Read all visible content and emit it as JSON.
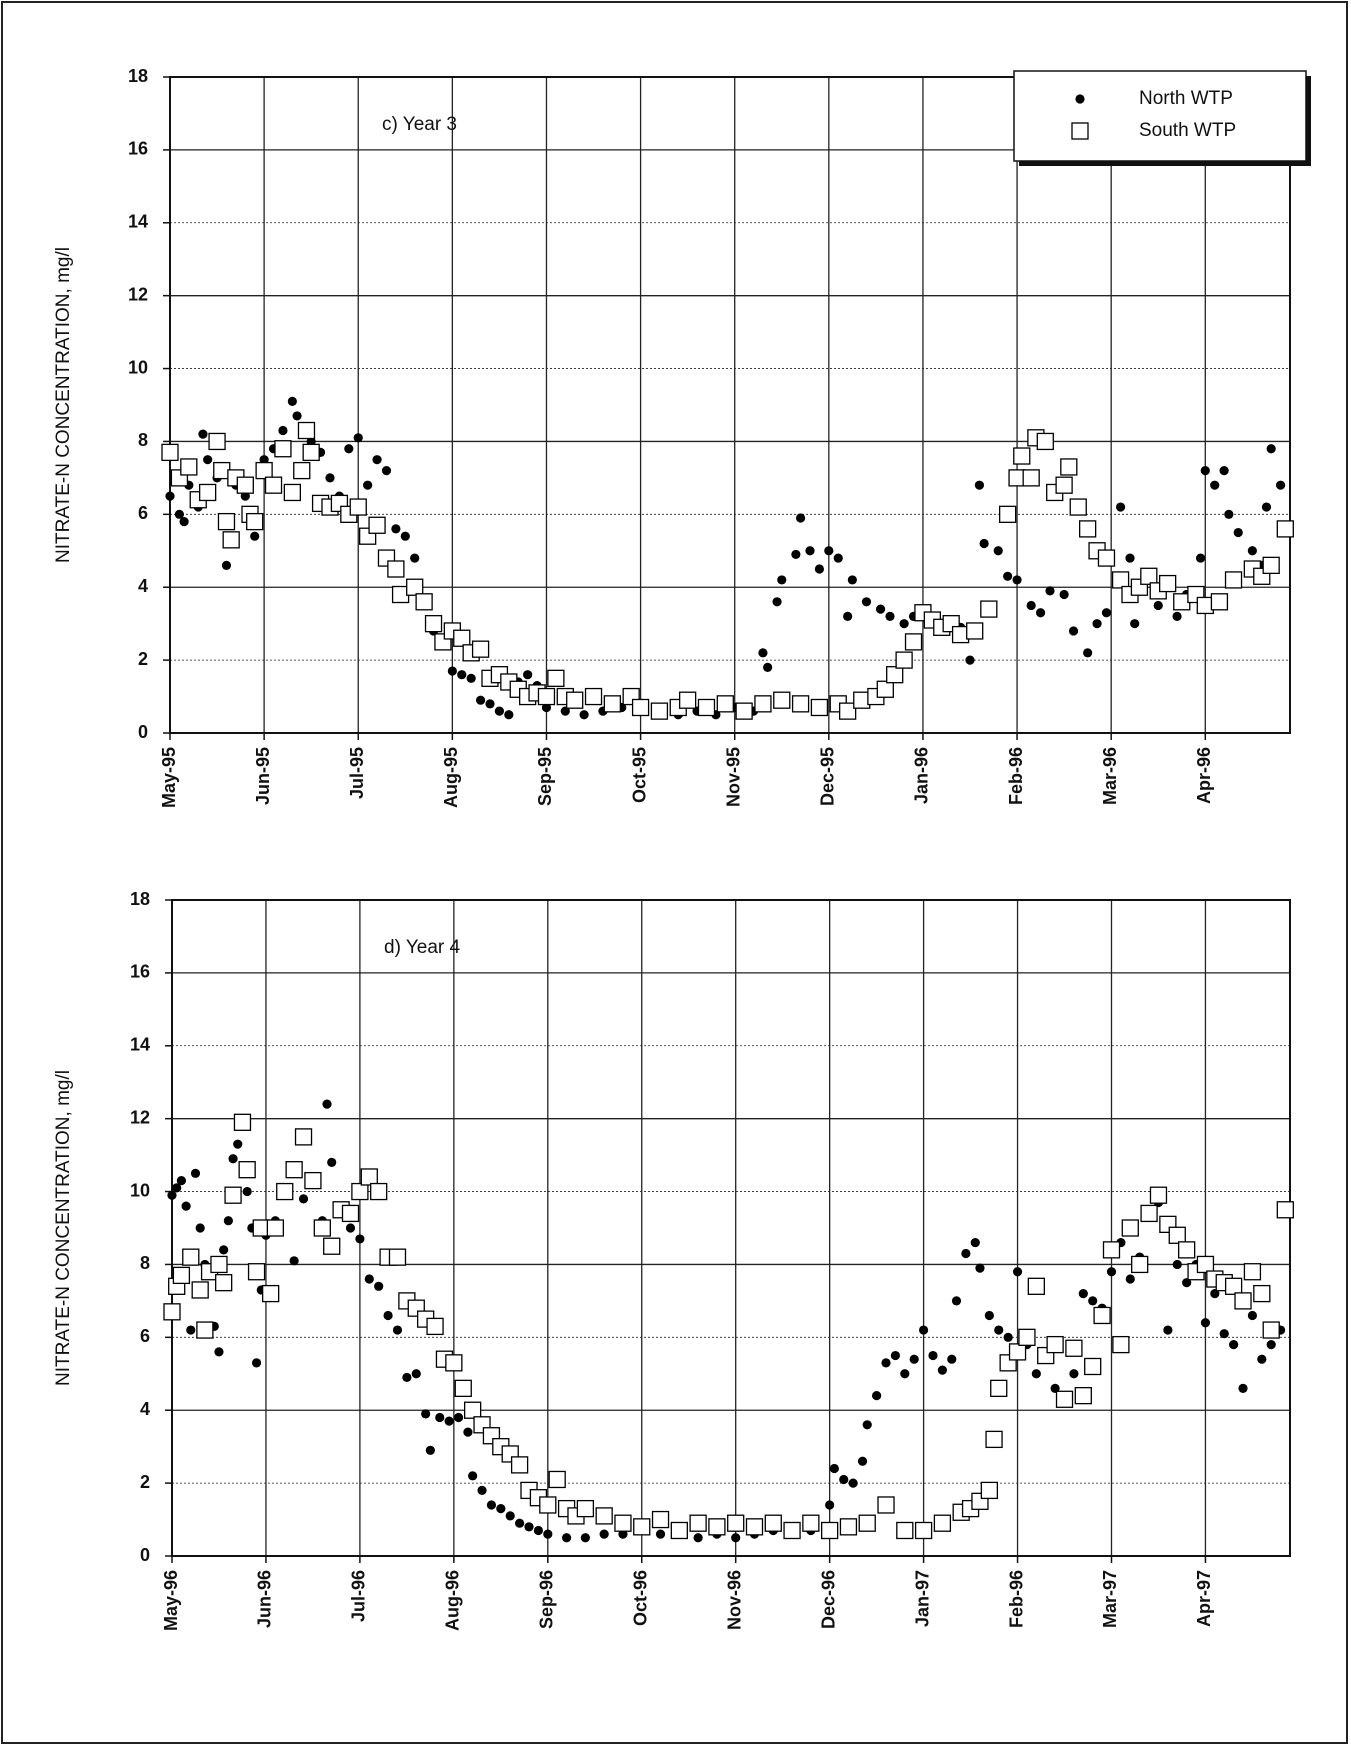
{
  "chart_data": [
    {
      "type": "scatter",
      "annotation": "c)  Year 3",
      "ylabel": "NITRATE-N CONCENTRATION, mg/l",
      "xlim": [
        0,
        11.9
      ],
      "ylim": [
        0,
        18
      ],
      "yticks": [
        0,
        2,
        4,
        6,
        8,
        10,
        12,
        14,
        16,
        18
      ],
      "xticks": [
        {
          "value": 0,
          "label": "May-95"
        },
        {
          "value": 1,
          "label": "Jun-95"
        },
        {
          "value": 2,
          "label": "Jul-95"
        },
        {
          "value": 3,
          "label": "Aug-95"
        },
        {
          "value": 4,
          "label": "Sep-95"
        },
        {
          "value": 5,
          "label": "Oct-95"
        },
        {
          "value": 6,
          "label": "Nov-95"
        },
        {
          "value": 7,
          "label": "Dec-95"
        },
        {
          "value": 8,
          "label": "Jan-96"
        },
        {
          "value": 9,
          "label": "Feb-96"
        },
        {
          "value": 10,
          "label": "Mar-96"
        },
        {
          "value": 11,
          "label": "Apr-96"
        }
      ],
      "grid": true,
      "legend": "upper right",
      "series": [
        {
          "name": "North WTP",
          "color": "#000000",
          "marker": "circle",
          "x": [
            0.0,
            0.05,
            0.1,
            0.15,
            0.2,
            0.3,
            0.35,
            0.4,
            0.5,
            0.6,
            0.7,
            0.8,
            0.9,
            1.0,
            1.1,
            1.2,
            1.3,
            1.35,
            1.4,
            1.5,
            1.6,
            1.7,
            1.8,
            1.9,
            2.0,
            2.1,
            2.2,
            2.3,
            2.4,
            2.5,
            2.6,
            2.7,
            2.8,
            2.9,
            3.0,
            3.1,
            3.2,
            3.3,
            3.4,
            3.5,
            3.6,
            3.7,
            3.8,
            3.9,
            4.0,
            4.2,
            4.4,
            4.6,
            4.8,
            5.0,
            5.2,
            5.4,
            5.6,
            5.8,
            6.0,
            6.2,
            6.3,
            6.35,
            6.45,
            6.5,
            6.65,
            6.7,
            6.8,
            6.9,
            7.0,
            7.1,
            7.2,
            7.25,
            7.4,
            7.55,
            7.65,
            7.8,
            7.9,
            8.1,
            8.25,
            8.4,
            8.5,
            8.6,
            8.65,
            8.8,
            8.9,
            9.0,
            9.15,
            9.25,
            9.35,
            9.5,
            9.6,
            9.75,
            9.85,
            9.95,
            10.1,
            10.2,
            10.25,
            10.4,
            10.5,
            10.7,
            10.8,
            10.9,
            10.95,
            11.0,
            11.1,
            11.2,
            11.25,
            11.35,
            11.5,
            11.6,
            11.65,
            11.7,
            11.8
          ],
          "values": [
            6.5,
            7.0,
            6.0,
            5.8,
            6.8,
            6.2,
            8.2,
            7.5,
            7.0,
            4.6,
            6.8,
            6.5,
            5.4,
            7.5,
            7.8,
            8.3,
            9.1,
            8.7,
            7.2,
            8.0,
            7.7,
            7.0,
            6.5,
            7.8,
            8.1,
            6.8,
            7.5,
            7.2,
            5.6,
            5.4,
            4.8,
            3.5,
            2.8,
            2.4,
            1.7,
            1.6,
            1.5,
            0.9,
            0.8,
            0.6,
            0.5,
            1.4,
            1.6,
            1.3,
            0.7,
            0.6,
            0.5,
            0.6,
            0.7,
            0.6,
            0.5,
            0.5,
            0.6,
            0.5,
            0.7,
            0.6,
            2.2,
            1.8,
            3.6,
            4.2,
            4.9,
            5.9,
            5.0,
            4.5,
            5.0,
            4.8,
            3.2,
            4.2,
            3.6,
            3.4,
            3.2,
            3.0,
            3.2,
            3.0,
            3.0,
            2.9,
            2.0,
            6.8,
            5.2,
            5.0,
            4.3,
            4.2,
            3.5,
            3.3,
            3.9,
            3.8,
            2.8,
            2.2,
            3.0,
            3.3,
            6.2,
            4.8,
            3.0,
            4.2,
            3.5,
            3.2,
            3.8,
            3.7,
            4.8,
            7.2,
            6.8,
            7.2,
            6.0,
            5.5,
            5.0,
            4.6,
            6.2,
            7.8,
            6.8
          ]
        },
        {
          "name": "South WTP",
          "color": "#000000",
          "marker": "square",
          "x": [
            0.0,
            0.1,
            0.2,
            0.3,
            0.4,
            0.5,
            0.55,
            0.6,
            0.65,
            0.7,
            0.8,
            0.85,
            0.9,
            1.0,
            1.1,
            1.2,
            1.3,
            1.4,
            1.45,
            1.5,
            1.6,
            1.7,
            1.8,
            1.9,
            2.0,
            2.1,
            2.2,
            2.3,
            2.4,
            2.45,
            2.6,
            2.7,
            2.8,
            2.9,
            3.0,
            3.1,
            3.2,
            3.3,
            3.4,
            3.5,
            3.6,
            3.7,
            3.8,
            3.9,
            4.0,
            4.1,
            4.2,
            4.3,
            4.5,
            4.7,
            4.9,
            5.0,
            5.2,
            5.4,
            5.5,
            5.7,
            5.9,
            6.1,
            6.3,
            6.5,
            6.7,
            6.9,
            7.1,
            7.2,
            7.35,
            7.5,
            7.6,
            7.7,
            7.8,
            7.9,
            8.0,
            8.1,
            8.2,
            8.3,
            8.4,
            8.55,
            8.7,
            8.9,
            9.0,
            9.05,
            9.15,
            9.2,
            9.3,
            9.4,
            9.5,
            9.55,
            9.65,
            9.75,
            9.85,
            9.95,
            10.1,
            10.2,
            10.3,
            10.4,
            10.5,
            10.6,
            10.75,
            10.9,
            11.0,
            11.15,
            11.3,
            11.5,
            11.6,
            11.7,
            11.85
          ],
          "values": [
            7.7,
            7.0,
            7.3,
            6.4,
            6.6,
            8.0,
            7.2,
            5.8,
            5.3,
            7.0,
            6.8,
            6.0,
            5.8,
            7.2,
            6.8,
            7.8,
            6.6,
            7.2,
            8.3,
            7.7,
            6.3,
            6.2,
            6.3,
            6.0,
            6.2,
            5.4,
            5.7,
            4.8,
            4.5,
            3.8,
            4.0,
            3.6,
            3.0,
            2.5,
            2.8,
            2.6,
            2.2,
            2.3,
            1.5,
            1.6,
            1.4,
            1.2,
            1.0,
            1.1,
            1.0,
            1.5,
            1.0,
            0.9,
            1.0,
            0.8,
            1.0,
            0.7,
            0.6,
            0.7,
            0.9,
            0.7,
            0.8,
            0.6,
            0.8,
            0.9,
            0.8,
            0.7,
            0.8,
            0.6,
            0.9,
            1.0,
            1.2,
            1.6,
            2.0,
            2.5,
            3.3,
            3.1,
            2.9,
            3.0,
            2.7,
            2.8,
            3.4,
            6.0,
            7.0,
            7.6,
            7.0,
            8.1,
            8.0,
            6.6,
            6.8,
            7.3,
            6.2,
            5.6,
            5.0,
            4.8,
            4.2,
            3.8,
            4.0,
            4.3,
            3.9,
            4.1,
            3.6,
            3.8,
            3.5,
            3.6,
            4.2,
            4.5,
            4.3,
            4.6,
            5.6
          ]
        }
      ]
    },
    {
      "type": "scatter",
      "annotation": "d)  Year 4",
      "ylabel": "NITRATE-N CONCENTRATION, mg/l",
      "xlim": [
        0,
        11.9
      ],
      "ylim": [
        0,
        18
      ],
      "yticks": [
        0,
        2,
        4,
        6,
        8,
        10,
        12,
        14,
        16,
        18
      ],
      "xticks": [
        {
          "value": 0,
          "label": "May-96"
        },
        {
          "value": 1,
          "label": "Jun-96"
        },
        {
          "value": 2,
          "label": "Jul-96"
        },
        {
          "value": 3,
          "label": "Aug-96"
        },
        {
          "value": 4,
          "label": "Sep-96"
        },
        {
          "value": 5,
          "label": "Oct-96"
        },
        {
          "value": 6,
          "label": "Nov-96"
        },
        {
          "value": 7,
          "label": "Dec-96"
        },
        {
          "value": 8,
          "label": "Jan-97"
        },
        {
          "value": 9,
          "label": "Feb-96"
        },
        {
          "value": 10,
          "label": "Mar-97"
        },
        {
          "value": 11,
          "label": "Apr-97"
        }
      ],
      "grid": true,
      "series": [
        {
          "color": "#000000",
          "marker": "circle",
          "x": [
            0.0,
            0.05,
            0.1,
            0.15,
            0.2,
            0.25,
            0.3,
            0.35,
            0.4,
            0.45,
            0.5,
            0.55,
            0.6,
            0.65,
            0.7,
            0.75,
            0.8,
            0.85,
            0.9,
            0.95,
            1.0,
            1.1,
            1.2,
            1.3,
            1.4,
            1.5,
            1.6,
            1.65,
            1.7,
            1.8,
            1.9,
            2.0,
            2.1,
            2.2,
            2.3,
            2.4,
            2.5,
            2.6,
            2.7,
            2.75,
            2.85,
            2.95,
            3.05,
            3.15,
            3.2,
            3.3,
            3.4,
            3.5,
            3.6,
            3.7,
            3.8,
            3.9,
            4.0,
            4.2,
            4.4,
            4.6,
            4.8,
            5.0,
            5.2,
            5.4,
            5.6,
            5.8,
            6.0,
            6.2,
            6.4,
            6.6,
            6.8,
            7.0,
            7.05,
            7.15,
            7.25,
            7.35,
            7.4,
            7.5,
            7.6,
            7.7,
            7.8,
            7.9,
            8.0,
            8.1,
            8.2,
            8.3,
            8.35,
            8.45,
            8.55,
            8.6,
            8.7,
            8.8,
            8.9,
            9.0,
            9.1,
            9.2,
            9.3,
            9.4,
            9.5,
            9.6,
            9.7,
            9.8,
            9.9,
            10.0,
            10.1,
            10.2,
            10.3,
            10.4,
            10.5,
            10.6,
            10.7,
            10.8,
            10.9,
            11.0,
            11.1,
            11.2,
            11.3,
            11.4,
            11.5,
            11.6,
            11.7,
            11.8
          ],
          "values": [
            9.9,
            10.1,
            10.3,
            9.6,
            6.2,
            10.5,
            9.0,
            8.0,
            7.7,
            6.3,
            5.6,
            8.4,
            9.2,
            10.9,
            11.3,
            12.0,
            10.0,
            9.0,
            5.3,
            7.3,
            8.8,
            9.2,
            10.1,
            8.1,
            9.8,
            10.3,
            9.2,
            12.4,
            10.8,
            9.5,
            9.0,
            8.7,
            7.6,
            7.4,
            6.6,
            6.2,
            4.9,
            5.0,
            3.9,
            2.9,
            3.8,
            3.7,
            3.8,
            3.4,
            2.2,
            1.8,
            1.4,
            1.3,
            1.1,
            0.9,
            0.8,
            0.7,
            0.6,
            0.5,
            0.5,
            0.6,
            0.6,
            0.7,
            0.6,
            0.7,
            0.5,
            0.6,
            0.5,
            0.6,
            0.7,
            0.6,
            0.7,
            1.4,
            2.4,
            2.1,
            2.0,
            2.6,
            3.6,
            4.4,
            5.3,
            5.5,
            5.0,
            5.4,
            6.2,
            5.5,
            5.1,
            5.4,
            7.0,
            8.3,
            8.6,
            7.9,
            6.6,
            6.2,
            6.0,
            7.8,
            5.8,
            5.0,
            5.5,
            4.6,
            4.2,
            5.0,
            7.2,
            7.0,
            6.8,
            7.8,
            8.6,
            7.6,
            8.2,
            9.5,
            9.7,
            6.2,
            8.0,
            7.5,
            8.0,
            6.4,
            7.2,
            6.1,
            5.8,
            4.6,
            6.6,
            5.4,
            5.8,
            6.2
          ]
        },
        {
          "color": "#000000",
          "marker": "square",
          "x": [
            0.0,
            0.05,
            0.1,
            0.2,
            0.3,
            0.35,
            0.4,
            0.5,
            0.55,
            0.65,
            0.75,
            0.8,
            0.9,
            0.95,
            1.05,
            1.1,
            1.2,
            1.3,
            1.4,
            1.5,
            1.6,
            1.7,
            1.8,
            1.9,
            2.0,
            2.1,
            2.2,
            2.3,
            2.4,
            2.5,
            2.6,
            2.7,
            2.8,
            2.9,
            3.0,
            3.1,
            3.2,
            3.3,
            3.4,
            3.5,
            3.6,
            3.7,
            3.8,
            3.9,
            4.0,
            4.1,
            4.2,
            4.3,
            4.4,
            4.6,
            4.8,
            5.0,
            5.2,
            5.4,
            5.6,
            5.8,
            6.0,
            6.2,
            6.4,
            6.6,
            6.8,
            7.0,
            7.2,
            7.4,
            7.6,
            7.8,
            8.0,
            8.2,
            8.4,
            8.5,
            8.6,
            8.7,
            8.75,
            8.8,
            8.9,
            9.0,
            9.1,
            9.2,
            9.3,
            9.4,
            9.5,
            9.6,
            9.7,
            9.8,
            9.9,
            10.0,
            10.1,
            10.2,
            10.3,
            10.4,
            10.5,
            10.6,
            10.7,
            10.8,
            10.9,
            11.0,
            11.1,
            11.2,
            11.3,
            11.4,
            11.5,
            11.6,
            11.7,
            11.85
          ],
          "values": [
            6.7,
            7.4,
            7.7,
            8.2,
            7.3,
            6.2,
            7.8,
            8.0,
            7.5,
            9.9,
            11.9,
            10.6,
            7.8,
            9.0,
            7.2,
            9.0,
            10.0,
            10.6,
            11.5,
            10.3,
            9.0,
            8.5,
            9.5,
            9.4,
            10.0,
            10.4,
            10.0,
            8.2,
            8.2,
            7.0,
            6.8,
            6.5,
            6.3,
            5.4,
            5.3,
            4.6,
            4.0,
            3.6,
            3.3,
            3.0,
            2.8,
            2.5,
            1.8,
            1.6,
            1.4,
            2.1,
            1.3,
            1.1,
            1.3,
            1.1,
            0.9,
            0.8,
            1.0,
            0.7,
            0.9,
            0.8,
            0.9,
            0.8,
            0.9,
            0.7,
            0.9,
            0.7,
            0.8,
            0.9,
            1.4,
            0.7,
            0.7,
            0.9,
            1.2,
            1.3,
            1.5,
            1.8,
            3.2,
            4.6,
            5.3,
            5.6,
            6.0,
            7.4,
            5.5,
            5.8,
            4.3,
            5.7,
            4.4,
            5.2,
            6.6,
            8.4,
            5.8,
            9.0,
            8.0,
            9.4,
            9.9,
            9.1,
            8.8,
            8.4,
            7.8,
            8.0,
            7.6,
            7.5,
            7.4,
            7.0,
            7.8,
            7.2,
            6.2,
            9.5
          ]
        }
      ]
    }
  ]
}
